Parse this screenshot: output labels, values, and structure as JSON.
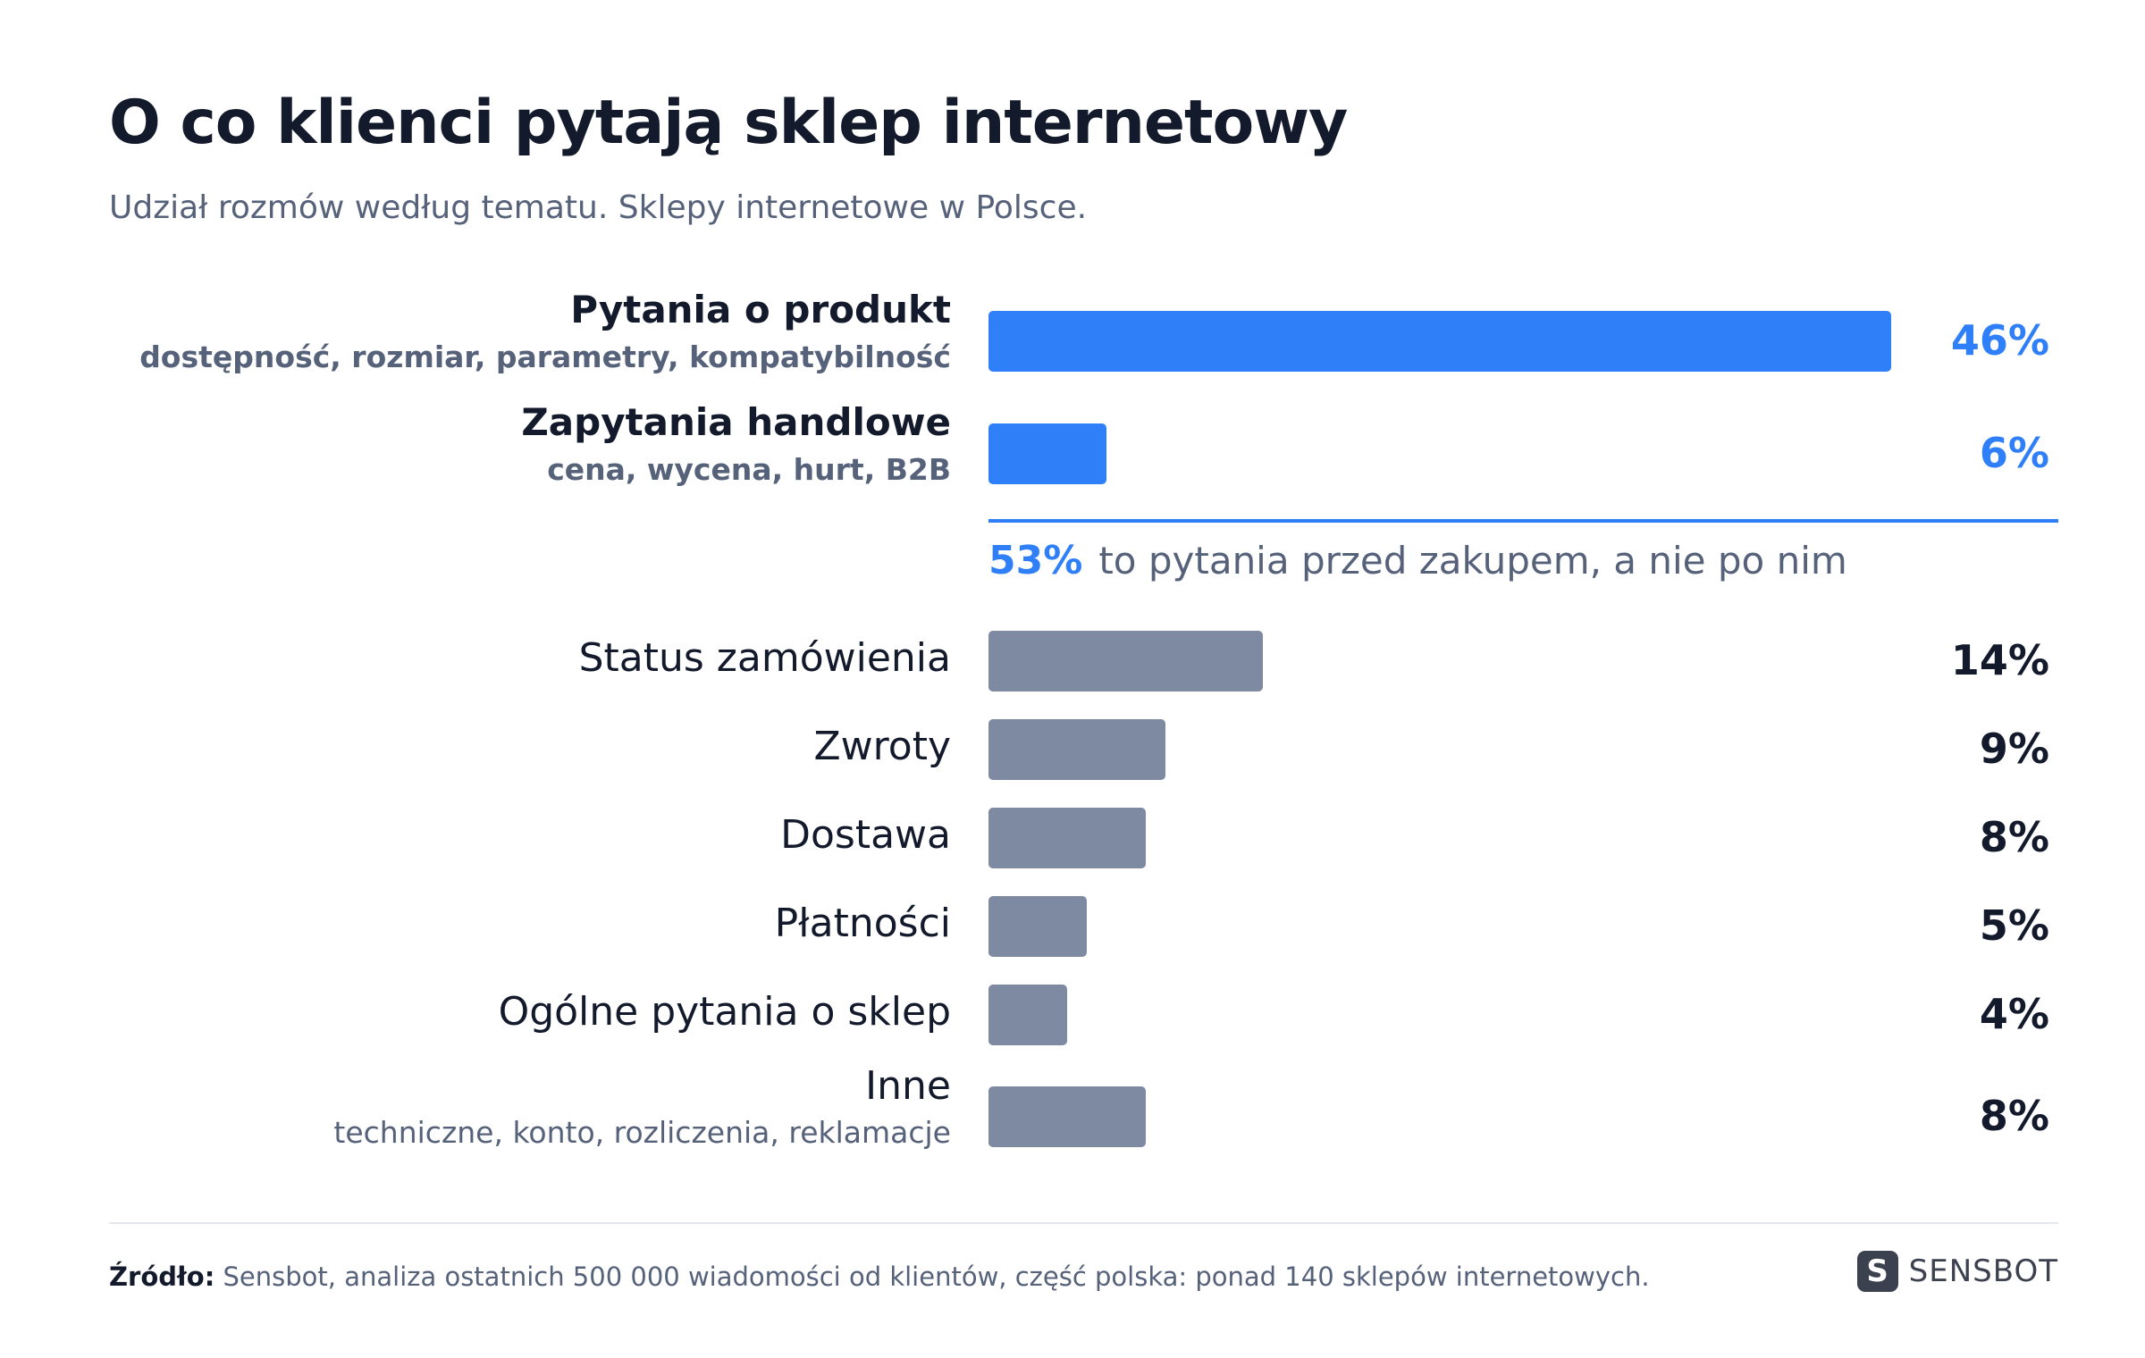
{
  "title": "O co klienci pytają sklep internetowy",
  "subtitle": "Udział rozmów według tematu. Sklepy internetowe w Polsce.",
  "colors": {
    "highlight": "#2f7ff8",
    "neutral": "#7e8aa1",
    "text_dark": "#131a2b",
    "text_muted": "#56617a"
  },
  "chart_data": {
    "type": "bar",
    "orientation": "horizontal",
    "xlim": [
      0,
      50
    ],
    "categories": [
      "Pytania o produkt",
      "Zapytania handlowe",
      "Status zamówienia",
      "Zwroty",
      "Dostawa",
      "Płatności",
      "Ogólne pytania o sklep",
      "Inne"
    ],
    "subtitles": [
      "dostępność, rozmiar, parametry, kompatybilność",
      "cena, wycena, hurt, B2B",
      "",
      "",
      "",
      "",
      "",
      "techniczne, konto, rozliczenia, reklamacje"
    ],
    "values": [
      46,
      6,
      14,
      9,
      8,
      5,
      4,
      8
    ],
    "value_labels": [
      "46%",
      "6%",
      "14%",
      "9%",
      "8%",
      "5%",
      "4%",
      "8%"
    ],
    "highlighted": [
      true,
      true,
      false,
      false,
      false,
      false,
      false,
      false
    ],
    "annotation": {
      "value": "53%",
      "text": "to pytania przed zakupem, a nie po nim"
    }
  },
  "footer": {
    "source_label": "Źródło:",
    "source_text": "Sensbot, analiza ostatnich 500 000 wiadomości od klientów, część polska: ponad 140 sklepów internetowych.",
    "brand": "SENSBOT",
    "brand_icon": "sensbot-s-logo"
  }
}
